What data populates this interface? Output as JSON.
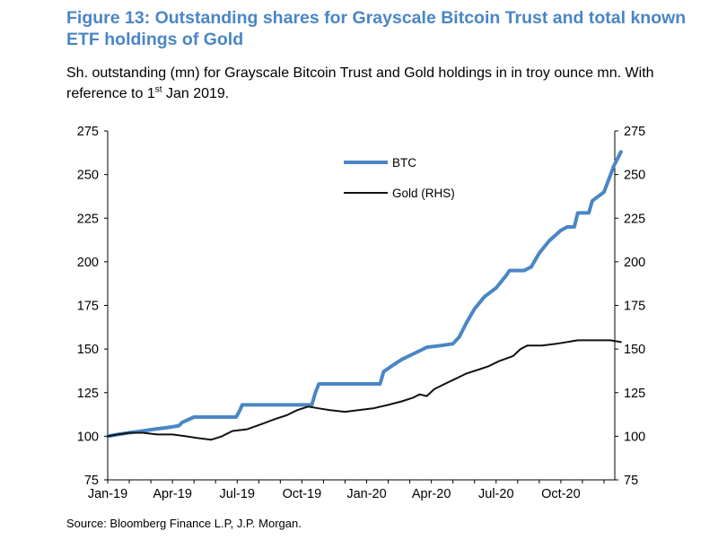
{
  "figure": {
    "title": "Figure 13: Outstanding shares for Grayscale Bitcoin Trust and total known ETF holdings of Gold",
    "subtitle_part1": "Sh. outstanding (mn) for Grayscale Bitcoin Trust and Gold holdings in in troy ounce mn. With reference to 1",
    "subtitle_sup": "st",
    "subtitle_part2": " Jan 2019.",
    "source": "Source: Bloomberg Finance L.P, J.P. Morgan."
  },
  "chart_data": {
    "type": "line",
    "x_unit": "months since Jan-19",
    "x_ticks": [
      "Jan-19",
      "Apr-19",
      "Jul-19",
      "Oct-19",
      "Jan-20",
      "Apr-20",
      "Jul-20",
      "Oct-20"
    ],
    "xlim": [
      "Jan-19",
      "Dec-20"
    ],
    "ylim": [
      75,
      275
    ],
    "y2lim": [
      75,
      275
    ],
    "y_ticks": [
      75,
      100,
      125,
      150,
      175,
      200,
      225,
      250,
      275
    ],
    "legend_placement": "top-center",
    "grid": false,
    "series": [
      {
        "name": "BTC",
        "axis": "left",
        "color": "#4a86c5",
        "points": [
          [
            "2019-01-01",
            100
          ],
          [
            "2019-01-15",
            101
          ],
          [
            "2019-02-01",
            102
          ],
          [
            "2019-02-20",
            103
          ],
          [
            "2019-03-05",
            104
          ],
          [
            "2019-03-25",
            105
          ],
          [
            "2019-04-10",
            106
          ],
          [
            "2019-04-15",
            108
          ],
          [
            "2019-05-01",
            111
          ],
          [
            "2019-06-01",
            111
          ],
          [
            "2019-06-30",
            111
          ],
          [
            "2019-07-05",
            115
          ],
          [
            "2019-07-08",
            118
          ],
          [
            "2019-08-15",
            118
          ],
          [
            "2019-09-15",
            118
          ],
          [
            "2019-10-01",
            118
          ],
          [
            "2019-10-15",
            118
          ],
          [
            "2019-10-20",
            125
          ],
          [
            "2019-10-25",
            130
          ],
          [
            "2019-12-01",
            130
          ],
          [
            "2020-01-01",
            130
          ],
          [
            "2020-01-20",
            130
          ],
          [
            "2020-01-25",
            137
          ],
          [
            "2020-02-05",
            140
          ],
          [
            "2020-02-20",
            144
          ],
          [
            "2020-03-10",
            148
          ],
          [
            "2020-03-25",
            151
          ],
          [
            "2020-04-15",
            152
          ],
          [
            "2020-05-01",
            153
          ],
          [
            "2020-05-10",
            157
          ],
          [
            "2020-05-20",
            165
          ],
          [
            "2020-06-01",
            173
          ],
          [
            "2020-06-15",
            180
          ],
          [
            "2020-07-01",
            185
          ],
          [
            "2020-07-15",
            192
          ],
          [
            "2020-07-20",
            195
          ],
          [
            "2020-08-10",
            195
          ],
          [
            "2020-08-20",
            197
          ],
          [
            "2020-09-01",
            205
          ],
          [
            "2020-09-15",
            212
          ],
          [
            "2020-10-01",
            218
          ],
          [
            "2020-10-10",
            220
          ],
          [
            "2020-10-20",
            220
          ],
          [
            "2020-10-25",
            228
          ],
          [
            "2020-11-10",
            228
          ],
          [
            "2020-11-15",
            235
          ],
          [
            "2020-12-01",
            240
          ],
          [
            "2020-12-15",
            255
          ],
          [
            "2020-12-25",
            263
          ]
        ]
      },
      {
        "name": "Gold (RHS)",
        "axis": "right",
        "color": "#111111",
        "points": [
          [
            "2019-01-01",
            100
          ],
          [
            "2019-01-15",
            101
          ],
          [
            "2019-02-01",
            102
          ],
          [
            "2019-02-20",
            102
          ],
          [
            "2019-03-10",
            101
          ],
          [
            "2019-04-01",
            101
          ],
          [
            "2019-04-20",
            100
          ],
          [
            "2019-05-05",
            99
          ],
          [
            "2019-05-25",
            98
          ],
          [
            "2019-06-10",
            100
          ],
          [
            "2019-06-25",
            103
          ],
          [
            "2019-07-15",
            104
          ],
          [
            "2019-08-05",
            107
          ],
          [
            "2019-08-25",
            110
          ],
          [
            "2019-09-10",
            112
          ],
          [
            "2019-09-25",
            115
          ],
          [
            "2019-10-10",
            117
          ],
          [
            "2019-10-25",
            116
          ],
          [
            "2019-11-10",
            115
          ],
          [
            "2019-12-01",
            114
          ],
          [
            "2019-12-20",
            115
          ],
          [
            "2020-01-10",
            116
          ],
          [
            "2020-02-01",
            118
          ],
          [
            "2020-02-20",
            120
          ],
          [
            "2020-03-05",
            122
          ],
          [
            "2020-03-15",
            124
          ],
          [
            "2020-03-25",
            123
          ],
          [
            "2020-04-05",
            127
          ],
          [
            "2020-04-20",
            130
          ],
          [
            "2020-05-05",
            133
          ],
          [
            "2020-05-20",
            136
          ],
          [
            "2020-06-05",
            138
          ],
          [
            "2020-06-20",
            140
          ],
          [
            "2020-07-05",
            143
          ],
          [
            "2020-07-25",
            146
          ],
          [
            "2020-08-05",
            150
          ],
          [
            "2020-08-15",
            152
          ],
          [
            "2020-09-05",
            152
          ],
          [
            "2020-09-25",
            153
          ],
          [
            "2020-10-10",
            154
          ],
          [
            "2020-10-25",
            155
          ],
          [
            "2020-11-10",
            155
          ],
          [
            "2020-11-25",
            155
          ],
          [
            "2020-12-10",
            155
          ],
          [
            "2020-12-25",
            154
          ]
        ]
      }
    ]
  }
}
